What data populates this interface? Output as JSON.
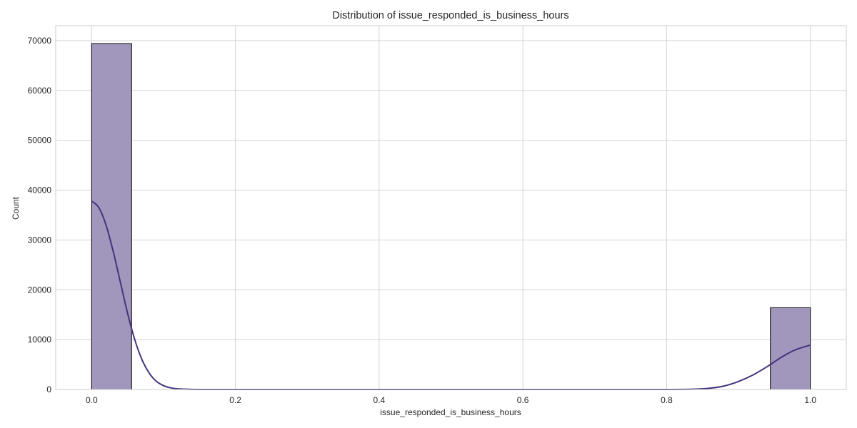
{
  "chart_data": {
    "type": "bar",
    "title": "Distribution of issue_responded_is_business_hours",
    "xlabel": "issue_responded_is_business_hours",
    "ylabel": "Count",
    "xlim": [
      -0.05,
      1.05
    ],
    "ylim": [
      0,
      73000
    ],
    "x_ticks": [
      0.0,
      0.2,
      0.4,
      0.6,
      0.8,
      1.0
    ],
    "x_tick_labels": [
      "0.0",
      "0.2",
      "0.4",
      "0.6",
      "0.8",
      "1.0"
    ],
    "y_ticks": [
      0,
      10000,
      20000,
      30000,
      40000,
      50000,
      60000,
      70000
    ],
    "y_tick_labels": [
      "0",
      "10000",
      "20000",
      "30000",
      "40000",
      "50000",
      "60000",
      "70000"
    ],
    "grid": true,
    "legend": false,
    "bins": [
      {
        "x0": 0.0,
        "x1": 0.0556,
        "count": 69400
      },
      {
        "x0": 0.9444,
        "x1": 1.0,
        "count": 16400
      }
    ],
    "kde": {
      "x": [
        0.0,
        0.01,
        0.02,
        0.03,
        0.04,
        0.05,
        0.06,
        0.07,
        0.08,
        0.09,
        0.1,
        0.11,
        0.12,
        0.14,
        0.16,
        0.2,
        0.4,
        0.6,
        0.8,
        0.84,
        0.86,
        0.88,
        0.9,
        0.92,
        0.94,
        0.96,
        0.98,
        1.0
      ],
      "y": [
        37800,
        36500,
        33000,
        27700,
        21500,
        15300,
        10000,
        6000,
        3300,
        1650,
        780,
        330,
        130,
        20,
        0,
        0,
        0,
        0,
        0,
        80,
        250,
        700,
        1600,
        2900,
        4600,
        6500,
        8000,
        8900
      ]
    },
    "colors": {
      "bar_fill": "#a196bc",
      "bar_edge": "#000000",
      "kde_line": "#45337d",
      "grid": "#d3d3d3",
      "axes_edge": "#cccccc"
    }
  }
}
